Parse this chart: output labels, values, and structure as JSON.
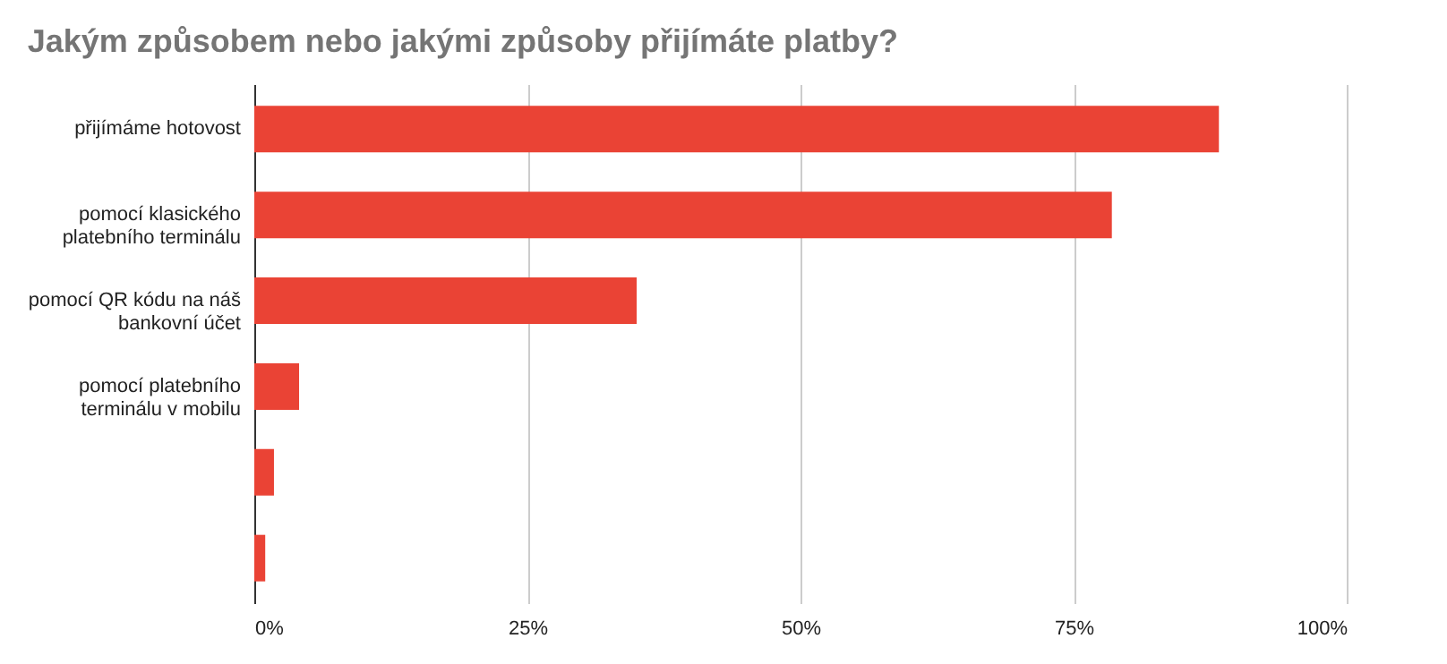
{
  "chart_data": {
    "type": "bar",
    "orientation": "horizontal",
    "title": "Jakým způsobem nebo jakými způsoby přijímáte platby?",
    "categories": [
      "přijímáme hotovost",
      "pomocí klasického platebního terminálu",
      "pomocí QR kódu na náš bankovní účet",
      "pomocí platebního terminálu v mobilu",
      null,
      null
    ],
    "values": [
      88.3,
      78.5,
      35.0,
      4.1,
      1.8,
      1.0
    ],
    "color": "#ea4335",
    "xlim": [
      0,
      100
    ],
    "xticks": [
      {
        "value": 0,
        "label": "0%"
      },
      {
        "value": 25,
        "label": "25%"
      },
      {
        "value": 50,
        "label": "50%"
      },
      {
        "value": 75,
        "label": "75%"
      },
      {
        "value": 100,
        "label": "100%"
      }
    ],
    "grid": "x"
  }
}
